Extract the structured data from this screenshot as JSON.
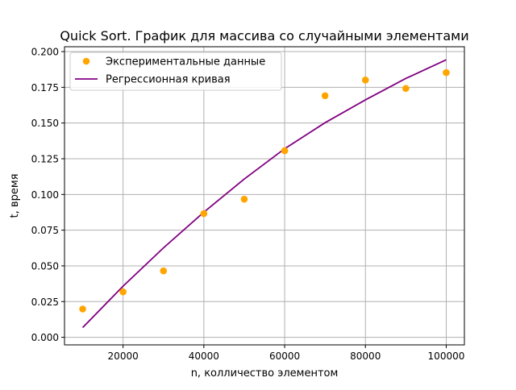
{
  "chart_data": {
    "type": "scatter",
    "title": "Quick Sort. График для массива со случайными элементами",
    "xlabel": "n, колличество элементом",
    "ylabel": "t, время",
    "xlim": [
      5500,
      104500
    ],
    "ylim": [
      -0.0053,
      0.2034
    ],
    "grid": true,
    "legend_position": "top-left",
    "x_ticks": [
      20000,
      40000,
      60000,
      80000,
      100000
    ],
    "x_tick_labels": [
      "20000",
      "40000",
      "60000",
      "80000",
      "100000"
    ],
    "y_ticks": [
      0.0,
      0.025,
      0.05,
      0.075,
      0.1,
      0.125,
      0.15,
      0.175,
      0.2
    ],
    "y_tick_labels": [
      "0.000",
      "0.025",
      "0.050",
      "0.075",
      "0.100",
      "0.125",
      "0.150",
      "0.175",
      "0.200"
    ],
    "series": [
      {
        "name": "Экспериментальные данные",
        "kind": "scatter",
        "color": "#ffa500",
        "x": [
          10000,
          20000,
          30000,
          40000,
          50000,
          60000,
          70000,
          80000,
          90000,
          100000
        ],
        "y": [
          0.0198,
          0.0318,
          0.0465,
          0.0866,
          0.0967,
          0.1306,
          0.1691,
          0.1801,
          0.1742,
          0.1853
        ]
      },
      {
        "name": "Регрессионная кривая",
        "kind": "line",
        "color": "#800080",
        "x": [
          10000,
          20000,
          30000,
          40000,
          50000,
          60000,
          70000,
          80000,
          90000,
          100000
        ],
        "y": [
          0.0068,
          0.0358,
          0.0626,
          0.0876,
          0.1108,
          0.132,
          0.1502,
          0.1662,
          0.1812,
          0.1943
        ]
      }
    ]
  }
}
